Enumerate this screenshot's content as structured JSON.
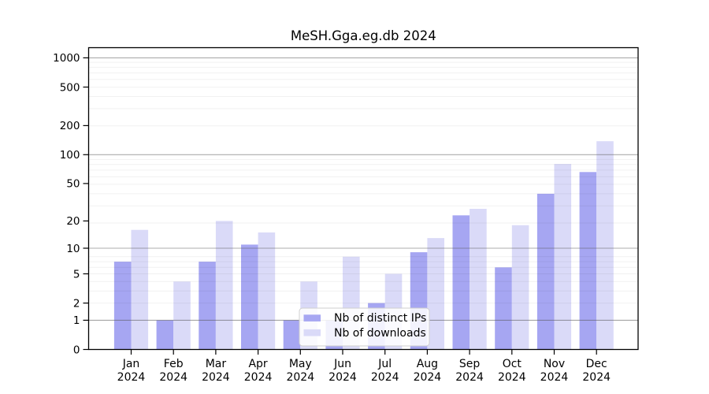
{
  "page": {
    "background": "#ffffff"
  },
  "chart_data": {
    "type": "bar",
    "title": "MeSH.Gga.eg.db 2024",
    "categories": [
      "Jan",
      "Feb",
      "Mar",
      "Apr",
      "May",
      "Jun",
      "Jul",
      "Aug",
      "Sep",
      "Oct",
      "Nov",
      "Dec"
    ],
    "x_year": "2024",
    "series": [
      {
        "name": "Nb of distinct IPs",
        "color": "#a6a6f2",
        "values": [
          7,
          1,
          7,
          11,
          1,
          1,
          2,
          9,
          23,
          6,
          39,
          66
        ]
      },
      {
        "name": "Nb of downloads",
        "color": "#dadaf8",
        "values": [
          16,
          4,
          20,
          15,
          4,
          8,
          5,
          13,
          27,
          18,
          80,
          138
        ]
      }
    ],
    "y_scale": "log1p",
    "ylim": [
      0,
      1000
    ],
    "y_ticks": [
      0,
      1,
      2,
      5,
      10,
      20,
      50,
      100,
      200,
      500,
      1000
    ],
    "y_tick_labels": [
      "0",
      "1",
      "2",
      "5",
      "10",
      "20",
      "50",
      "100",
      "200",
      "500",
      "1000"
    ],
    "grid": "horizontal major at 1,10,100,1000 plus faint log minors",
    "legend_position": "inside lower-center",
    "colors": {
      "axis": "#000000",
      "grid_major": "#b0b0b0",
      "grid_minor": "#e9e9e9",
      "legend_border": "#cfcfcf",
      "legend_background": "#ffffff"
    }
  }
}
